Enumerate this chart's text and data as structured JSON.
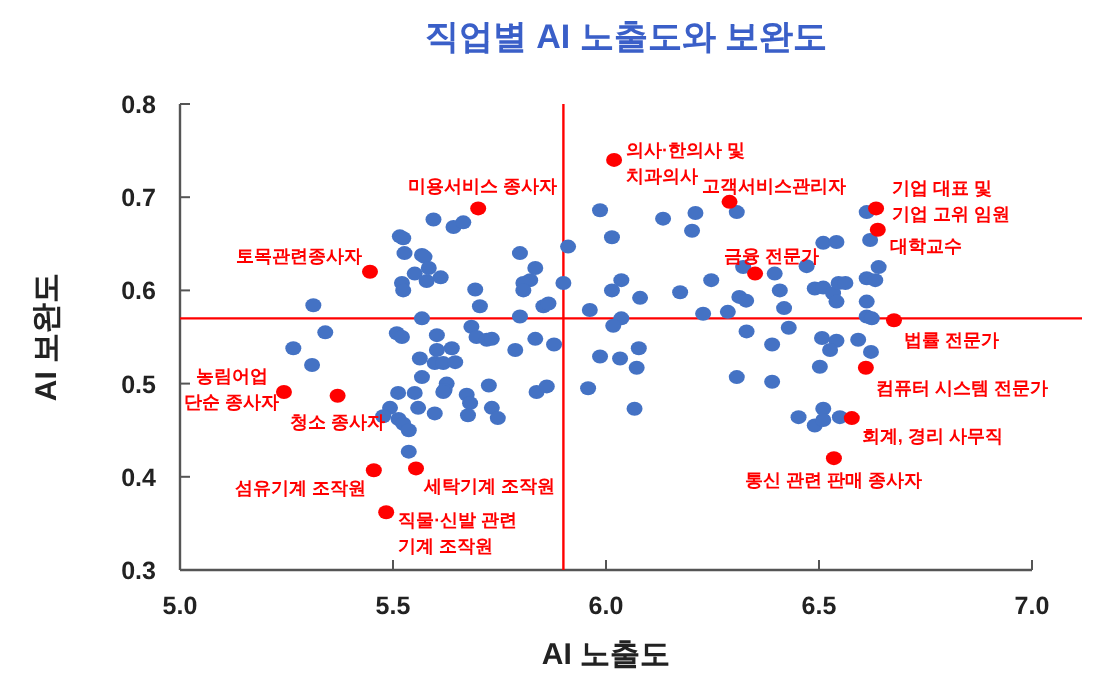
{
  "chart_data": {
    "type": "scatter",
    "title": "직업별 AI 노출도와 보완도",
    "xlabel": "AI 노출도",
    "ylabel": "AI 보완도",
    "marker": "circle",
    "xlim": [
      5.0,
      7.0
    ],
    "ylim": [
      0.3,
      0.8
    ],
    "xticks": [
      {
        "value": 5.0,
        "label": "5.0"
      },
      {
        "value": 5.5,
        "label": "5.5"
      },
      {
        "value": 6.0,
        "label": "6.0"
      },
      {
        "value": 6.5,
        "label": "6.5"
      },
      {
        "value": 7.0,
        "label": "7.0"
      }
    ],
    "yticks": [
      0.3,
      0.4,
      0.5,
      0.6,
      0.7,
      0.8
    ],
    "series": [
      {
        "color": "#4472c4",
        "x": [
          5.595,
          5.642,
          5.665,
          5.516,
          5.524,
          5.527,
          5.568,
          5.574,
          5.584,
          5.551,
          5.612,
          5.579,
          5.521,
          5.524,
          5.693,
          5.798,
          5.834,
          5.822,
          5.806,
          5.806,
          5.853,
          5.865,
          5.911,
          5.9,
          5.313,
          5.704,
          5.798,
          5.568,
          5.341,
          5.509,
          5.521,
          5.603,
          5.684,
          5.696,
          5.72,
          5.732,
          5.266,
          5.638,
          5.603,
          5.834,
          5.878,
          5.787,
          5.563,
          5.598,
          5.618,
          5.646,
          5.31,
          5.568,
          5.626,
          5.621,
          5.725,
          5.512,
          5.551,
          5.618,
          5.673,
          5.681,
          5.493,
          5.559,
          5.598,
          5.477,
          5.513,
          5.524,
          5.732,
          5.746,
          5.676,
          5.537,
          5.537,
          5.837,
          5.861,
          5.986,
          6.014,
          6.134,
          6.21,
          6.202,
          6.307,
          6.036,
          6.014,
          6.08,
          5.962,
          6.036,
          6.017,
          6.174,
          6.247,
          6.313,
          6.329,
          6.228,
          6.286,
          6.322,
          6.396,
          6.408,
          6.418,
          6.429,
          6.33,
          6.39,
          6.471,
          6.51,
          6.541,
          6.49,
          6.51,
          6.533,
          6.546,
          6.562,
          6.541,
          6.612,
          6.62,
          6.64,
          6.612,
          6.632,
          6.612,
          6.612,
          6.624,
          6.592,
          6.622,
          6.507,
          6.541,
          6.526,
          6.502,
          5.986,
          6.033,
          6.077,
          6.072,
          5.958,
          6.067,
          6.307,
          6.39,
          6.452,
          6.49,
          6.51,
          6.51,
          6.549
        ],
        "values": [
          0.676,
          0.668,
          0.673,
          0.658,
          0.656,
          0.64,
          0.638,
          0.636,
          0.624,
          0.618,
          0.614,
          0.61,
          0.608,
          0.6,
          0.601,
          0.64,
          0.624,
          0.611,
          0.608,
          0.6,
          0.583,
          0.586,
          0.647,
          0.608,
          0.584,
          0.583,
          0.572,
          0.57,
          0.555,
          0.554,
          0.55,
          0.552,
          0.561,
          0.55,
          0.547,
          0.548,
          0.538,
          0.538,
          0.536,
          0.548,
          0.542,
          0.536,
          0.527,
          0.522,
          0.522,
          0.523,
          0.52,
          0.507,
          0.5,
          0.493,
          0.498,
          0.49,
          0.49,
          0.491,
          0.488,
          0.479,
          0.474,
          0.474,
          0.468,
          0.465,
          0.462,
          0.457,
          0.474,
          0.463,
          0.466,
          0.45,
          0.427,
          0.491,
          0.497,
          0.686,
          0.657,
          0.677,
          0.683,
          0.664,
          0.684,
          0.611,
          0.6,
          0.592,
          0.579,
          0.57,
          0.562,
          0.598,
          0.611,
          0.593,
          0.589,
          0.575,
          0.577,
          0.625,
          0.618,
          0.6,
          0.581,
          0.56,
          0.556,
          0.542,
          0.626,
          0.651,
          0.652,
          0.602,
          0.603,
          0.597,
          0.608,
          0.608,
          0.588,
          0.684,
          0.654,
          0.625,
          0.613,
          0.611,
          0.588,
          0.572,
          0.57,
          0.547,
          0.534,
          0.549,
          0.546,
          0.536,
          0.518,
          0.529,
          0.527,
          0.538,
          0.517,
          0.495,
          0.473,
          0.507,
          0.502,
          0.464,
          0.455,
          0.473,
          0.461,
          0.464
        ]
      },
      {
        "color": "#ff0000",
        "x": [
          5.7,
          5.446,
          5.244,
          5.37,
          5.455,
          5.554,
          5.484,
          6.019,
          6.29,
          6.35,
          6.634,
          6.638,
          6.676,
          6.61,
          6.577,
          6.535
        ],
        "values": [
          0.688,
          0.62,
          0.491,
          0.487,
          0.407,
          0.409,
          0.362,
          0.74,
          0.695,
          0.618,
          0.688,
          0.665,
          0.568,
          0.517,
          0.463,
          0.42
        ]
      }
    ],
    "ref_lines": [
      {
        "axis": "x",
        "value": 5.9,
        "color": "#ff0000"
      },
      {
        "axis": "y",
        "value": 0.57,
        "color": "#ff0000"
      }
    ],
    "annotations": [
      {
        "text": "미용서비스 종사자",
        "x": 5.7,
        "y": 0.688
      },
      {
        "text": "토목관련종사자",
        "x": 5.446,
        "y": 0.62
      },
      {
        "text": "농림어업\n단순 종사자",
        "x": 5.244,
        "y": 0.491
      },
      {
        "text": "청소 종사자",
        "x": 5.37,
        "y": 0.487
      },
      {
        "text": "섬유기계 조작원",
        "x": 5.455,
        "y": 0.407
      },
      {
        "text": "세탁기계 조작원",
        "x": 5.554,
        "y": 0.409
      },
      {
        "text": "직물·신발 관련\n기계 조작원",
        "x": 5.484,
        "y": 0.362
      },
      {
        "text": "의사·한의사 및\n치과의사",
        "x": 6.019,
        "y": 0.74
      },
      {
        "text": "고객서비스관리자",
        "x": 6.29,
        "y": 0.695
      },
      {
        "text": "금융 전문가",
        "x": 6.35,
        "y": 0.618
      },
      {
        "text": "기업 대표 및\n기업 고위 임원",
        "x": 6.634,
        "y": 0.688
      },
      {
        "text": "대학교수",
        "x": 6.638,
        "y": 0.665
      },
      {
        "text": "법률 전문가",
        "x": 6.676,
        "y": 0.568
      },
      {
        "text": "컴퓨터 시스템 전문가",
        "x": 6.61,
        "y": 0.517
      },
      {
        "text": "회계, 경리 사무직",
        "x": 6.577,
        "y": 0.463
      },
      {
        "text": "통신 관련 판매 종사자",
        "x": 6.535,
        "y": 0.42
      }
    ]
  }
}
